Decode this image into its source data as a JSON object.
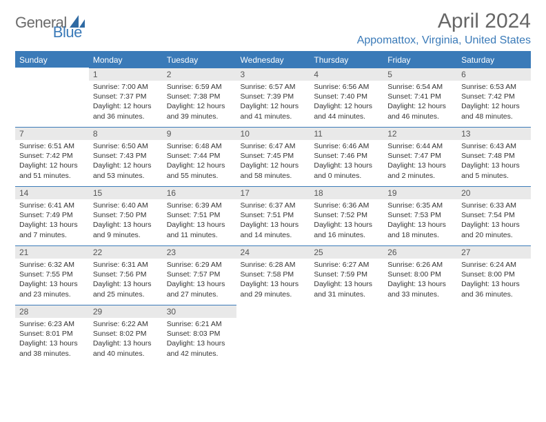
{
  "brand": {
    "text1": "General",
    "text2": "Blue",
    "text1_color": "#6b6b6b",
    "text2_color": "#3a7ab8"
  },
  "title": "April 2024",
  "location": "Appomattox, Virginia, United States",
  "colors": {
    "header_bg": "#3a7ab8",
    "header_fg": "#ffffff",
    "daynum_bg": "#e9e9e9",
    "rule": "#3a7ab8"
  },
  "day_headers": [
    "Sunday",
    "Monday",
    "Tuesday",
    "Wednesday",
    "Thursday",
    "Friday",
    "Saturday"
  ],
  "weeks": [
    [
      {
        "n": "",
        "sunrise": "",
        "sunset": "",
        "daylight": ""
      },
      {
        "n": "1",
        "sunrise": "Sunrise: 7:00 AM",
        "sunset": "Sunset: 7:37 PM",
        "daylight": "Daylight: 12 hours and 36 minutes."
      },
      {
        "n": "2",
        "sunrise": "Sunrise: 6:59 AM",
        "sunset": "Sunset: 7:38 PM",
        "daylight": "Daylight: 12 hours and 39 minutes."
      },
      {
        "n": "3",
        "sunrise": "Sunrise: 6:57 AM",
        "sunset": "Sunset: 7:39 PM",
        "daylight": "Daylight: 12 hours and 41 minutes."
      },
      {
        "n": "4",
        "sunrise": "Sunrise: 6:56 AM",
        "sunset": "Sunset: 7:40 PM",
        "daylight": "Daylight: 12 hours and 44 minutes."
      },
      {
        "n": "5",
        "sunrise": "Sunrise: 6:54 AM",
        "sunset": "Sunset: 7:41 PM",
        "daylight": "Daylight: 12 hours and 46 minutes."
      },
      {
        "n": "6",
        "sunrise": "Sunrise: 6:53 AM",
        "sunset": "Sunset: 7:42 PM",
        "daylight": "Daylight: 12 hours and 48 minutes."
      }
    ],
    [
      {
        "n": "7",
        "sunrise": "Sunrise: 6:51 AM",
        "sunset": "Sunset: 7:42 PM",
        "daylight": "Daylight: 12 hours and 51 minutes."
      },
      {
        "n": "8",
        "sunrise": "Sunrise: 6:50 AM",
        "sunset": "Sunset: 7:43 PM",
        "daylight": "Daylight: 12 hours and 53 minutes."
      },
      {
        "n": "9",
        "sunrise": "Sunrise: 6:48 AM",
        "sunset": "Sunset: 7:44 PM",
        "daylight": "Daylight: 12 hours and 55 minutes."
      },
      {
        "n": "10",
        "sunrise": "Sunrise: 6:47 AM",
        "sunset": "Sunset: 7:45 PM",
        "daylight": "Daylight: 12 hours and 58 minutes."
      },
      {
        "n": "11",
        "sunrise": "Sunrise: 6:46 AM",
        "sunset": "Sunset: 7:46 PM",
        "daylight": "Daylight: 13 hours and 0 minutes."
      },
      {
        "n": "12",
        "sunrise": "Sunrise: 6:44 AM",
        "sunset": "Sunset: 7:47 PM",
        "daylight": "Daylight: 13 hours and 2 minutes."
      },
      {
        "n": "13",
        "sunrise": "Sunrise: 6:43 AM",
        "sunset": "Sunset: 7:48 PM",
        "daylight": "Daylight: 13 hours and 5 minutes."
      }
    ],
    [
      {
        "n": "14",
        "sunrise": "Sunrise: 6:41 AM",
        "sunset": "Sunset: 7:49 PM",
        "daylight": "Daylight: 13 hours and 7 minutes."
      },
      {
        "n": "15",
        "sunrise": "Sunrise: 6:40 AM",
        "sunset": "Sunset: 7:50 PM",
        "daylight": "Daylight: 13 hours and 9 minutes."
      },
      {
        "n": "16",
        "sunrise": "Sunrise: 6:39 AM",
        "sunset": "Sunset: 7:51 PM",
        "daylight": "Daylight: 13 hours and 11 minutes."
      },
      {
        "n": "17",
        "sunrise": "Sunrise: 6:37 AM",
        "sunset": "Sunset: 7:51 PM",
        "daylight": "Daylight: 13 hours and 14 minutes."
      },
      {
        "n": "18",
        "sunrise": "Sunrise: 6:36 AM",
        "sunset": "Sunset: 7:52 PM",
        "daylight": "Daylight: 13 hours and 16 minutes."
      },
      {
        "n": "19",
        "sunrise": "Sunrise: 6:35 AM",
        "sunset": "Sunset: 7:53 PM",
        "daylight": "Daylight: 13 hours and 18 minutes."
      },
      {
        "n": "20",
        "sunrise": "Sunrise: 6:33 AM",
        "sunset": "Sunset: 7:54 PM",
        "daylight": "Daylight: 13 hours and 20 minutes."
      }
    ],
    [
      {
        "n": "21",
        "sunrise": "Sunrise: 6:32 AM",
        "sunset": "Sunset: 7:55 PM",
        "daylight": "Daylight: 13 hours and 23 minutes."
      },
      {
        "n": "22",
        "sunrise": "Sunrise: 6:31 AM",
        "sunset": "Sunset: 7:56 PM",
        "daylight": "Daylight: 13 hours and 25 minutes."
      },
      {
        "n": "23",
        "sunrise": "Sunrise: 6:29 AM",
        "sunset": "Sunset: 7:57 PM",
        "daylight": "Daylight: 13 hours and 27 minutes."
      },
      {
        "n": "24",
        "sunrise": "Sunrise: 6:28 AM",
        "sunset": "Sunset: 7:58 PM",
        "daylight": "Daylight: 13 hours and 29 minutes."
      },
      {
        "n": "25",
        "sunrise": "Sunrise: 6:27 AM",
        "sunset": "Sunset: 7:59 PM",
        "daylight": "Daylight: 13 hours and 31 minutes."
      },
      {
        "n": "26",
        "sunrise": "Sunrise: 6:26 AM",
        "sunset": "Sunset: 8:00 PM",
        "daylight": "Daylight: 13 hours and 33 minutes."
      },
      {
        "n": "27",
        "sunrise": "Sunrise: 6:24 AM",
        "sunset": "Sunset: 8:00 PM",
        "daylight": "Daylight: 13 hours and 36 minutes."
      }
    ],
    [
      {
        "n": "28",
        "sunrise": "Sunrise: 6:23 AM",
        "sunset": "Sunset: 8:01 PM",
        "daylight": "Daylight: 13 hours and 38 minutes."
      },
      {
        "n": "29",
        "sunrise": "Sunrise: 6:22 AM",
        "sunset": "Sunset: 8:02 PM",
        "daylight": "Daylight: 13 hours and 40 minutes."
      },
      {
        "n": "30",
        "sunrise": "Sunrise: 6:21 AM",
        "sunset": "Sunset: 8:03 PM",
        "daylight": "Daylight: 13 hours and 42 minutes."
      },
      {
        "n": "",
        "sunrise": "",
        "sunset": "",
        "daylight": ""
      },
      {
        "n": "",
        "sunrise": "",
        "sunset": "",
        "daylight": ""
      },
      {
        "n": "",
        "sunrise": "",
        "sunset": "",
        "daylight": ""
      },
      {
        "n": "",
        "sunrise": "",
        "sunset": "",
        "daylight": ""
      }
    ]
  ]
}
